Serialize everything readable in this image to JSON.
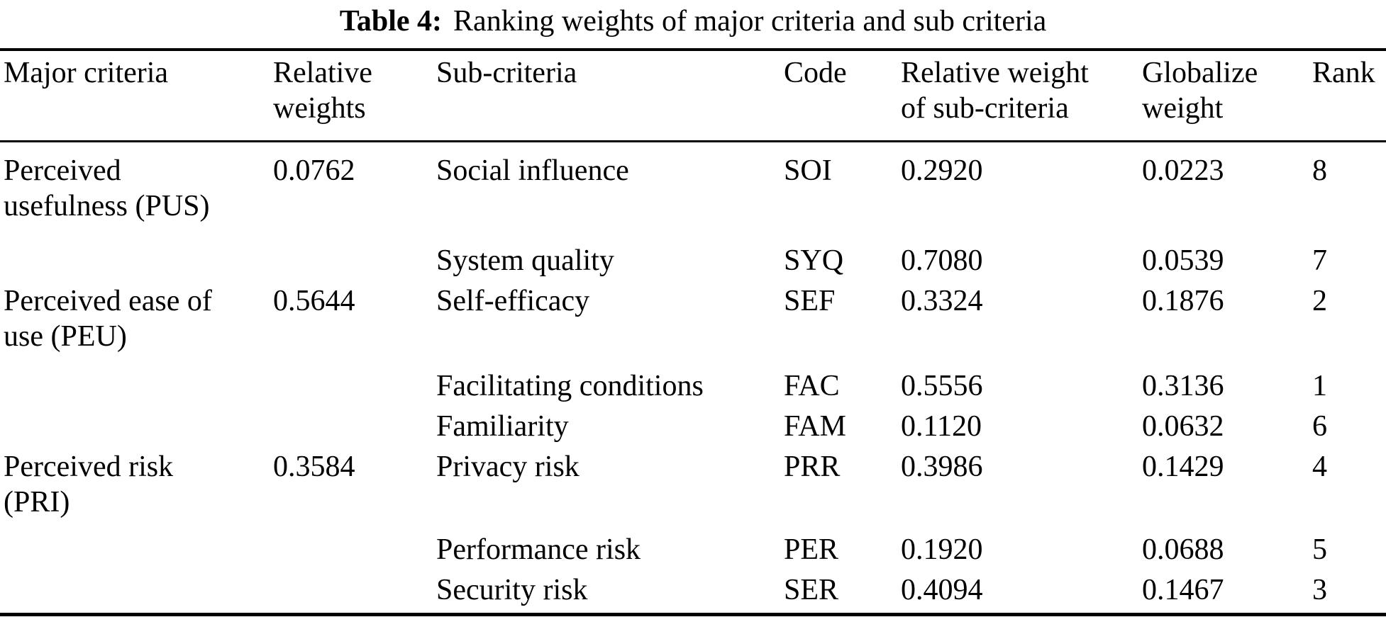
{
  "page": {
    "background": "#ffffff",
    "text_color": "#000000"
  },
  "caption": {
    "label": "Table 4:",
    "text": "Ranking weights of major criteria and sub criteria"
  },
  "table": {
    "columns": [
      "Major criteria",
      "Relative\nweights",
      "Sub-criteria",
      "Code",
      "Relative weight\nof sub-criteria",
      "Globalize\nweight",
      "Rank"
    ],
    "rows": [
      {
        "major": "Perceived\nusefulness (PUS)",
        "relative_weight": "0.0762",
        "sub": "Social influence",
        "code": "SOI",
        "sub_weight": "0.2920",
        "global_weight": "0.0223",
        "rank": "8"
      },
      {
        "major": "",
        "relative_weight": "",
        "sub": "System quality",
        "code": "SYQ",
        "sub_weight": "0.7080",
        "global_weight": "0.0539",
        "rank": "7"
      },
      {
        "major": "Perceived ease of\nuse (PEU)",
        "relative_weight": "0.5644",
        "sub": "Self-efficacy",
        "code": "SEF",
        "sub_weight": "0.3324",
        "global_weight": "0.1876",
        "rank": "2"
      },
      {
        "major": "",
        "relative_weight": "",
        "sub": "Facilitating conditions",
        "code": "FAC",
        "sub_weight": "0.5556",
        "global_weight": "0.3136",
        "rank": "1"
      },
      {
        "major": "",
        "relative_weight": "",
        "sub": "Familiarity",
        "code": "FAM",
        "sub_weight": "0.1120",
        "global_weight": "0.0632",
        "rank": "6"
      },
      {
        "major": "Perceived risk\n(PRI)",
        "relative_weight": "0.3584",
        "sub": "Privacy risk",
        "code": "PRR",
        "sub_weight": "0.3986",
        "global_weight": "0.1429",
        "rank": "4"
      },
      {
        "major": "",
        "relative_weight": "",
        "sub": "Performance risk",
        "code": "PER",
        "sub_weight": "0.1920",
        "global_weight": "0.0688",
        "rank": "5"
      },
      {
        "major": "",
        "relative_weight": "",
        "sub": "Security risk",
        "code": "SER",
        "sub_weight": "0.4094",
        "global_weight": "0.1467",
        "rank": "3"
      }
    ]
  }
}
